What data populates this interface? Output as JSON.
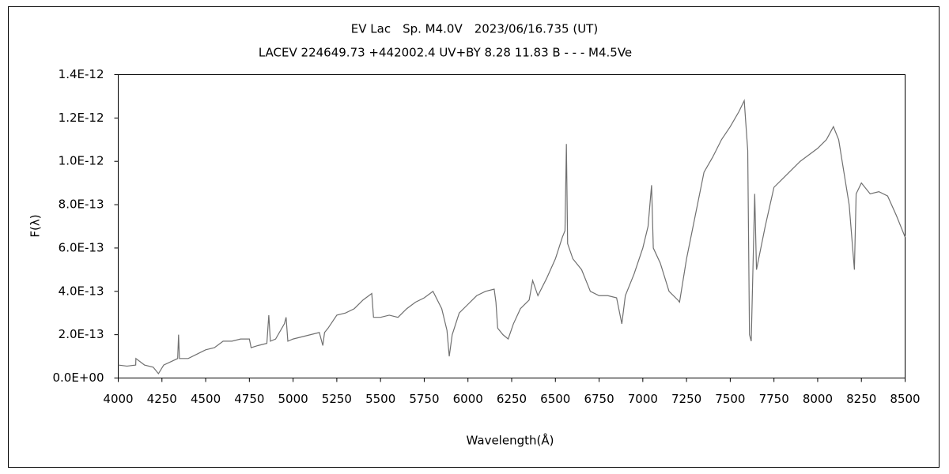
{
  "chart_data": {
    "type": "line",
    "title": "EV Lac　Sp. M4.0V　2023/06/16.735 (UT)",
    "subtitle": "LACEV 224649.73 +442002.4 UV+BY 8.28 11.83 B - - - M4.5Ve",
    "x_label": "Wavelength(Å)",
    "y_label": "F(λ)",
    "x": [
      4000,
      4050,
      4100,
      4101,
      4150,
      4200,
      4230,
      4260,
      4340,
      4345,
      4350,
      4400,
      4450,
      4500,
      4550,
      4600,
      4650,
      4700,
      4750,
      4760,
      4800,
      4850,
      4861,
      4870,
      4900,
      4950,
      4960,
      4970,
      5000,
      5050,
      5100,
      5150,
      5170,
      5180,
      5200,
      5250,
      5300,
      5350,
      5400,
      5450,
      5460,
      5500,
      5550,
      5600,
      5650,
      5700,
      5750,
      5800,
      5850,
      5880,
      5893,
      5910,
      5950,
      6000,
      6050,
      6100,
      6150,
      6160,
      6170,
      6200,
      6230,
      6260,
      6300,
      6350,
      6370,
      6400,
      6450,
      6500,
      6540,
      6555,
      6563,
      6570,
      6600,
      6650,
      6700,
      6750,
      6800,
      6850,
      6880,
      6900,
      6950,
      7000,
      7030,
      7050,
      7060,
      7100,
      7150,
      7200,
      7210,
      7250,
      7300,
      7350,
      7400,
      7450,
      7500,
      7550,
      7580,
      7600,
      7610,
      7620,
      7640,
      7650,
      7700,
      7750,
      7800,
      7850,
      7900,
      7950,
      8000,
      8050,
      8090,
      8120,
      8150,
      8180,
      8200,
      8210,
      8220,
      8250,
      8300,
      8350,
      8400,
      8450,
      8500
    ],
    "series": [
      {
        "name": "F(λ)",
        "color": "#707070",
        "values": [
          6e-14,
          5.5e-14,
          6e-14,
          9e-14,
          6e-14,
          5e-14,
          2e-14,
          6e-14,
          9e-14,
          2e-13,
          9e-14,
          9e-14,
          1.1e-13,
          1.3e-13,
          1.4e-13,
          1.7e-13,
          1.7e-13,
          1.8e-13,
          1.8e-13,
          1.4e-13,
          1.5e-13,
          1.6e-13,
          2.9e-13,
          1.7e-13,
          1.8e-13,
          2.5e-13,
          2.8e-13,
          1.7e-13,
          1.8e-13,
          1.9e-13,
          2e-13,
          2.1e-13,
          1.5e-13,
          2.1e-13,
          2.3e-13,
          2.9e-13,
          3e-13,
          3.2e-13,
          3.6e-13,
          3.9e-13,
          2.8e-13,
          2.8e-13,
          2.9e-13,
          2.8e-13,
          3.2e-13,
          3.5e-13,
          3.7e-13,
          4e-13,
          3.2e-13,
          2.2e-13,
          1e-13,
          2e-13,
          3e-13,
          3.4e-13,
          3.8e-13,
          4e-13,
          4.1e-13,
          3.5e-13,
          2.3e-13,
          2e-13,
          1.8e-13,
          2.5e-13,
          3.2e-13,
          3.6e-13,
          4.5e-13,
          3.8e-13,
          4.6e-13,
          5.5e-13,
          6.5e-13,
          6.8e-13,
          1.08e-12,
          6.2e-13,
          5.5e-13,
          5e-13,
          4e-13,
          3.8e-13,
          3.8e-13,
          3.7e-13,
          2.5e-13,
          3.8e-13,
          4.8e-13,
          6e-13,
          7e-13,
          8.9e-13,
          6e-13,
          5.3e-13,
          4e-13,
          3.6e-13,
          3.5e-13,
          5.5e-13,
          7.5e-13,
          9.5e-13,
          1.02e-12,
          1.1e-12,
          1.16e-12,
          1.23e-12,
          1.28e-12,
          1.05e-12,
          2e-13,
          1.7e-13,
          8.5e-13,
          5e-13,
          7e-13,
          8.8e-13,
          9.2e-13,
          9.6e-13,
          1e-12,
          1.03e-12,
          1.06e-12,
          1.1e-12,
          1.16e-12,
          1.1e-12,
          9.5e-13,
          8e-13,
          6e-13,
          5e-13,
          8.5e-13,
          9e-13,
          8.5e-13,
          8.6e-13,
          8.4e-13,
          7.5e-13,
          6.5e-13
        ]
      }
    ],
    "xlim": [
      4000,
      8500
    ],
    "xticks": [
      4000,
      4250,
      4500,
      4750,
      5000,
      5250,
      5500,
      5750,
      6000,
      6250,
      6500,
      6750,
      7000,
      7250,
      7500,
      7750,
      8000,
      8250,
      8500
    ],
    "ylim": [
      0,
      1.4e-12
    ],
    "yticks": [
      {
        "value": 0,
        "label": "0.0E+00"
      },
      {
        "value": 2e-13,
        "label": "2.0E-13"
      },
      {
        "value": 4e-13,
        "label": "4.0E-13"
      },
      {
        "value": 6e-13,
        "label": "6.0E-13"
      },
      {
        "value": 8e-13,
        "label": "8.0E-13"
      },
      {
        "value": 1e-12,
        "label": "1.0E-12"
      },
      {
        "value": 1.2e-12,
        "label": "1.2E-12"
      },
      {
        "value": 1.4e-12,
        "label": "1.4E-12"
      }
    ],
    "grid": false
  }
}
